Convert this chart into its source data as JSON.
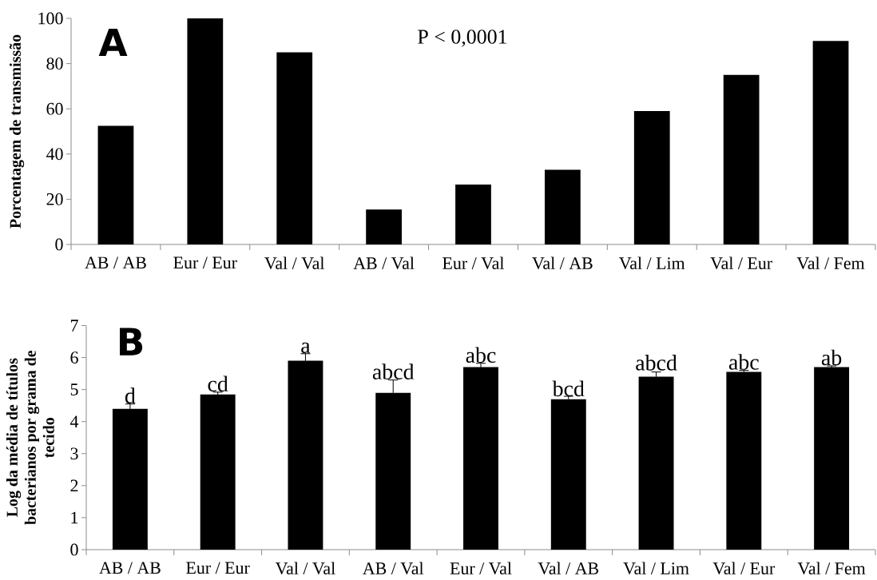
{
  "chart_data": [
    {
      "type": "bar",
      "title": "A",
      "ylabel": "Porcentagem de transmissão",
      "categories": [
        "AB / AB",
        "Eur / Eur",
        "Val / Val",
        "AB / Val",
        "Eur / Val",
        "Val / AB",
        "Val / Lim",
        "Val / Eur",
        "Val / Fem"
      ],
      "values": [
        52.5,
        100,
        85,
        15.5,
        26.5,
        33,
        59,
        75,
        90
      ],
      "color": "#000000",
      "ylim": [
        0,
        100
      ],
      "yticks": [
        0,
        20,
        40,
        60,
        80,
        100
      ],
      "annotations": [
        "P < 0,0001"
      ]
    },
    {
      "type": "bar",
      "title": "B",
      "ylabel": "Log da média de títulos bacterianos por grama de tecido",
      "categories": [
        "AB / AB",
        "Eur / Eur",
        "Val / Val",
        "AB / Val",
        "Eur / Val",
        "Val / AB",
        "Val / Lim",
        "Val / Eur",
        "Val / Fem"
      ],
      "values": [
        4.4,
        4.85,
        5.9,
        4.9,
        5.7,
        4.7,
        5.4,
        5.55,
        5.7
      ],
      "errors": [
        0.15,
        0.07,
        0.22,
        0.4,
        0.12,
        0.09,
        0.15,
        0.05,
        0.04
      ],
      "color": "#000000",
      "ylim": [
        0,
        7
      ],
      "yticks": [
        0,
        1,
        2,
        3,
        4,
        5,
        6,
        7
      ],
      "annotations": [
        {
          "text": "d",
          "x": "AB / AB",
          "y": 4.55
        },
        {
          "text": "cd",
          "x": "Eur / Eur",
          "y": 4.92
        },
        {
          "text": "a",
          "x": "Val / Val",
          "y": 6.12
        },
        {
          "text": "abcd",
          "x": "AB / Val",
          "y": 5.3
        },
        {
          "text": "abc",
          "x": "Eur / Val",
          "y": 5.82
        },
        {
          "text": "bcd",
          "x": "Val / AB",
          "y": 4.77
        },
        {
          "text": "abcd",
          "x": "Val / Lim",
          "y": 5.58
        },
        {
          "text": "abc",
          "x": "Val / Eur",
          "y": 5.6
        },
        {
          "text": "ab",
          "x": "Val / Fem",
          "y": 5.74
        }
      ]
    }
  ]
}
